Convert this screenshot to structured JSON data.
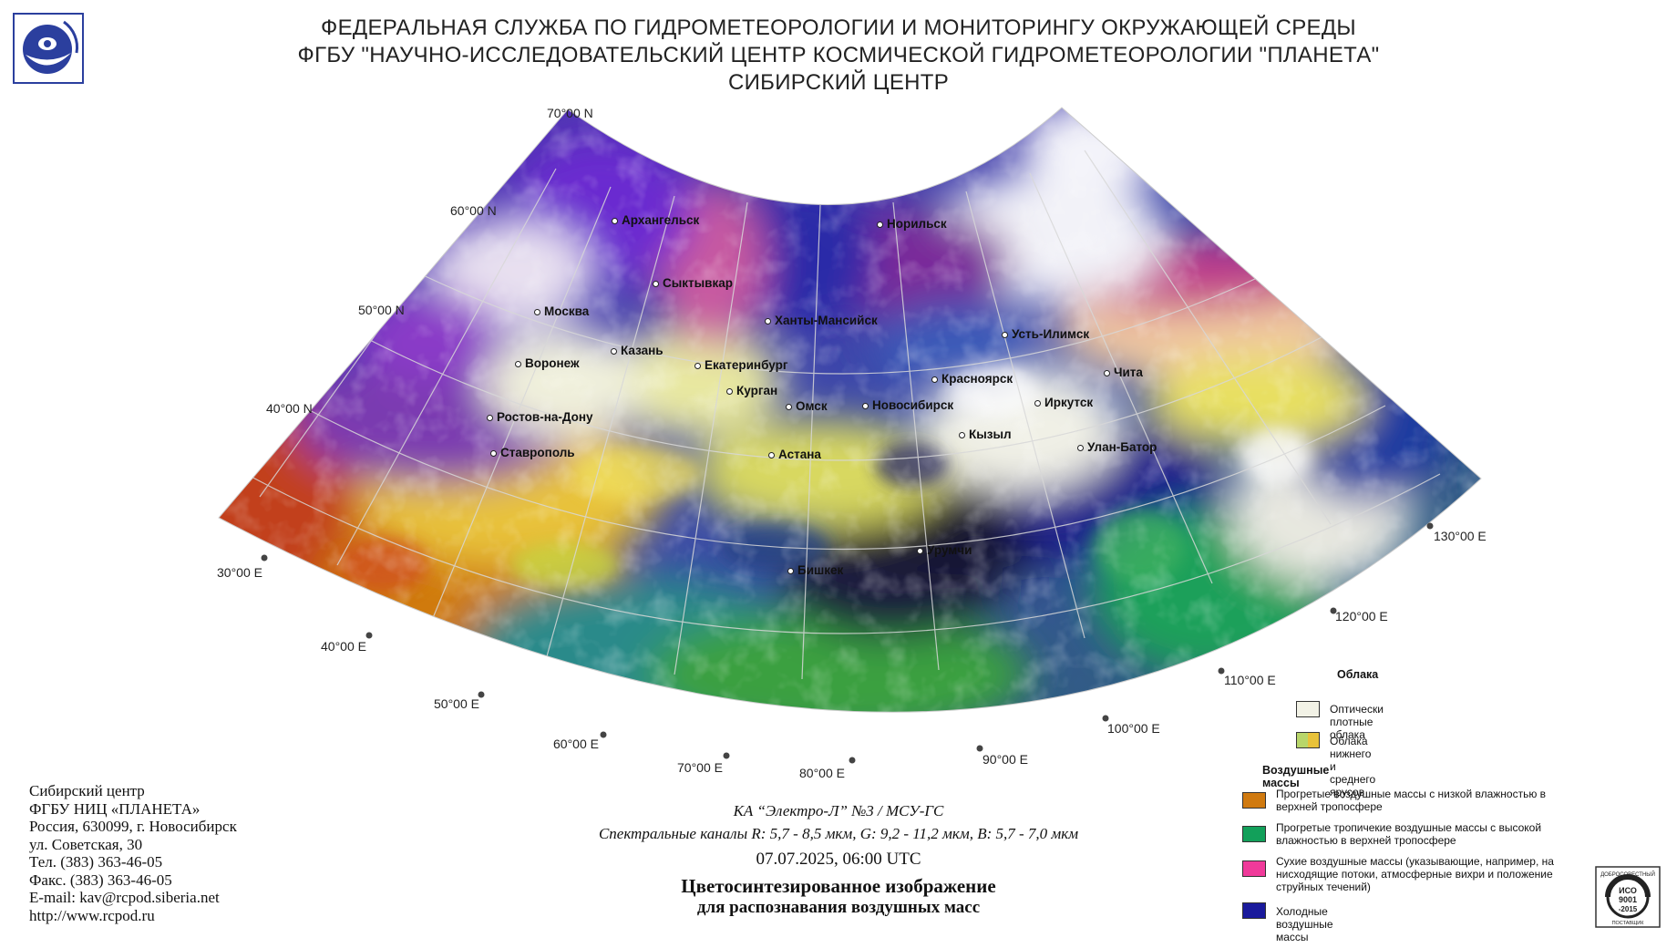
{
  "header": {
    "line1": "ФЕДЕРАЛЬНАЯ СЛУЖБА ПО ГИДРОМЕТЕОРОЛОГИИ И МОНИТОРИНГУ ОКРУЖАЮЩЕЙ СРЕДЫ",
    "line2": "ФГБУ \"НАУЧНО-ИССЛЕДОВАТЕЛЬСКИЙ ЦЕНТР КОСМИЧЕСКОЙ ГИДРОМЕТЕОРОЛОГИИ \"ПЛАНЕТА\"",
    "line3": "СИБИРСКИЙ ЦЕНТР"
  },
  "map": {
    "lat_labels": [
      "70°00 N",
      "60°00 N",
      "50°00 N",
      "40°00 N"
    ],
    "lon_labels": [
      "30°00 E",
      "40°00 E",
      "50°00 E",
      "60°00 E",
      "70°00 E",
      "80°00 E",
      "90°00 E",
      "100°00 E",
      "110°00 E",
      "120°00 E",
      "130°00 E"
    ],
    "cities": [
      "Архангельск",
      "Норильск",
      "Сыктывкар",
      "Москва",
      "Ханты-Мансийск",
      "Усть-Илимск",
      "Казань",
      "Воронеж",
      "Екатеринбург",
      "Красноярск",
      "Чита",
      "Курган",
      "Иркутск",
      "Омск",
      "Новосибирск",
      "Ростов-на-Дону",
      "Кызыл",
      "Улан-Батор",
      "Ставрополь",
      "Астана",
      "Урумчи",
      "Бишкек"
    ]
  },
  "contact": {
    "line1": "Сибирский центр",
    "line2": "ФГБУ НИЦ «ПЛАНЕТА»",
    "line3": "Россия, 630099, г. Новосибирск",
    "line4": "ул. Советская, 30",
    "line5": "Тел. (383) 363-46-05",
    "line6": "Факс. (383) 363-46-05",
    "line7": "E-mail: kav@rcpod.siberia.net",
    "line8": "http://www.rcpod.ru"
  },
  "caption": {
    "satellite": "КА “Электро-Л” №3 / МСУ-ГС",
    "channels": "Спектральные каналы R: 5,7 - 8,5 мкм, G: 9,2 - 11,2 мкм, B: 5,7 - 7,0 мкм",
    "datetime": "07.07.2025, 06:00 UTC",
    "title1": "Цветосинтезированное изображение",
    "title2": "для распознавания воздушных масс"
  },
  "legend": {
    "clouds_title": "Облака",
    "clouds": [
      {
        "label": "Оптически плотные облака",
        "color": "#f2f2e6"
      },
      {
        "label": "Облака нижнего и среднего ярусов",
        "color": "#b8d66a",
        "color2": "#e8c23a"
      }
    ],
    "air_title": "Воздушные массы",
    "air": [
      {
        "label": "Прогретые воздушные массы с низкой влажностью в верхней тропосфере",
        "color": "#d07a10"
      },
      {
        "label": "Прогретые тропичекие воздушные массы с высокой влажностью в верхней тропосфере",
        "color": "#12a05a"
      },
      {
        "label": "Сухие воздушные массы (указывающие, например, на нисходящие потоки, атмосферные вихри и положение струйных течений)",
        "color": "#f03a9a"
      },
      {
        "label": "Холодные воздушные массы",
        "color": "#1a1a9c"
      }
    ]
  },
  "iso_badge": {
    "top": "ДОБРОСОВЕСТНЫЙ",
    "l1": "ИСО",
    "l2": "9001",
    "l3": "-2015",
    "bottom": "ПОСТАВЩИК"
  }
}
